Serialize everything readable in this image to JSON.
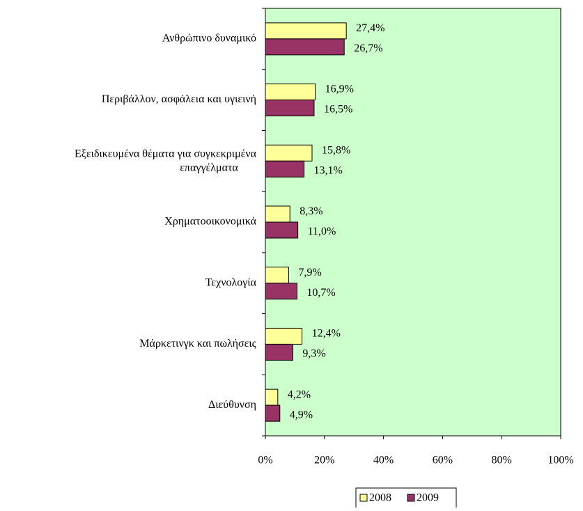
{
  "chart_data": {
    "type": "bar",
    "orientation": "horizontal",
    "categories": [
      "Ανθρώπινο δυναμικό",
      "Περιβάλλον, ασφάλεια και υγιεινή",
      "Εξειδικευμένα θέματα για συγκεκριμένα\nεπαγγέλματα",
      "Χρηματοοικονομικά",
      "Τεχνολογία",
      "Μάρκετινγκ και πωλήσεις",
      "Διεύθυνση"
    ],
    "series": [
      {
        "name": "2008",
        "color": "#ffff99",
        "values": [
          27.4,
          16.9,
          15.8,
          8.3,
          7.9,
          12.4,
          4.2
        ],
        "value_labels": [
          "27,4%",
          "16,9%",
          "15,8%",
          "8,3%",
          "7,9%",
          "12,4%",
          "4,2%"
        ]
      },
      {
        "name": "2009",
        "color": "#993366",
        "values": [
          26.7,
          16.5,
          13.1,
          11.0,
          10.7,
          9.3,
          4.9
        ],
        "value_labels": [
          "26,7%",
          "16,5%",
          "13,1%",
          "11,0%",
          "10,7%",
          "9,3%",
          "4,9%"
        ]
      }
    ],
    "xlim": [
      0,
      100
    ],
    "xticks": [
      {
        "value": 0,
        "label": "0%"
      },
      {
        "value": 20,
        "label": "20%"
      },
      {
        "value": 40,
        "label": "40%"
      },
      {
        "value": 60,
        "label": "60%"
      },
      {
        "value": 80,
        "label": "80%"
      },
      {
        "value": 100,
        "label": "100%"
      }
    ],
    "plot_background": "#ccffcc",
    "legend": "bottom"
  }
}
